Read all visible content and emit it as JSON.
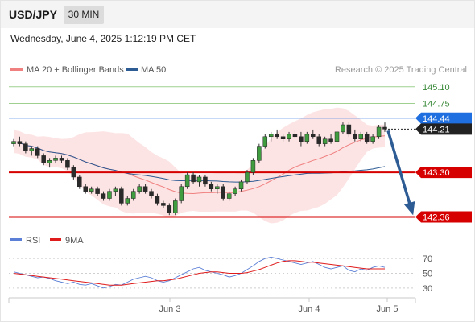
{
  "header": {
    "pair": "USD/JPY",
    "timeframe": "30 MIN"
  },
  "subheader": {
    "datetime": "Wednesday, June 4, 2025 1:12:19 PM CET"
  },
  "legend": {
    "ma20": "MA 20 + Bollinger Bands",
    "ma50": "MA 50",
    "credit": "Research © 2025 Trading Central"
  },
  "colors": {
    "up": "#3a8a3a",
    "down": "#d60000",
    "ma20": "#f08080",
    "ma50": "#2d5b94",
    "band_fill": "#fde4e4",
    "rsi": "#5b7fd6",
    "rsi_ma": "#e01b1b",
    "blue_arrow": "#2d5b94"
  },
  "chart_data": [
    {
      "type": "line",
      "subtype": "candlestick",
      "title": "USD/JPY",
      "price_range": [
        142.2,
        145.3
      ],
      "x_ticks": [
        "Jun 3",
        "Jun 4",
        "Jun 5"
      ],
      "levels": [
        {
          "value": 145.1,
          "label": "145.10",
          "style": "target",
          "color": "#3a8a3a"
        },
        {
          "value": 144.75,
          "label": "144.75",
          "style": "target",
          "color": "#3a8a3a"
        },
        {
          "value": 144.44,
          "label": "144.44",
          "style": "pivot",
          "color": "#1f6fe0"
        },
        {
          "value": 144.21,
          "label": "144.21",
          "style": "last",
          "color": "#222222"
        },
        {
          "value": 143.3,
          "label": "143.30",
          "style": "support",
          "color": "#d60000"
        },
        {
          "value": 142.36,
          "label": "142.36",
          "style": "support",
          "color": "#d60000"
        }
      ],
      "forecast_arrow": {
        "from": 144.21,
        "to": 142.36
      },
      "candles_approx": [
        [
          143.9,
          144.0,
          143.85,
          143.95
        ],
        [
          143.95,
          144.05,
          143.85,
          143.9
        ],
        [
          143.9,
          143.95,
          143.7,
          143.75
        ],
        [
          143.75,
          143.85,
          143.65,
          143.8
        ],
        [
          143.8,
          143.85,
          143.6,
          143.65
        ],
        [
          143.65,
          143.7,
          143.45,
          143.5
        ],
        [
          143.5,
          143.6,
          143.4,
          143.55
        ],
        [
          143.55,
          143.65,
          143.5,
          143.6
        ],
        [
          143.6,
          143.65,
          143.5,
          143.55
        ],
        [
          143.55,
          143.6,
          143.35,
          143.4
        ],
        [
          143.4,
          143.45,
          143.15,
          143.2
        ],
        [
          143.2,
          143.25,
          142.95,
          143.0
        ],
        [
          143.0,
          143.05,
          142.85,
          142.9
        ],
        [
          142.9,
          143.0,
          142.85,
          142.95
        ],
        [
          142.95,
          143.0,
          142.8,
          142.85
        ],
        [
          142.85,
          142.9,
          142.7,
          142.75
        ],
        [
          142.75,
          142.95,
          142.7,
          142.9
        ],
        [
          142.9,
          143.0,
          142.8,
          142.95
        ],
        [
          142.95,
          143.0,
          142.6,
          142.65
        ],
        [
          142.65,
          142.8,
          142.6,
          142.75
        ],
        [
          142.75,
          142.95,
          142.7,
          142.9
        ],
        [
          142.9,
          143.05,
          142.85,
          143.0
        ],
        [
          143.0,
          143.05,
          142.85,
          142.9
        ],
        [
          142.9,
          142.95,
          142.75,
          142.8
        ],
        [
          142.8,
          142.85,
          142.6,
          142.65
        ],
        [
          142.65,
          142.7,
          142.55,
          142.6
        ],
        [
          142.6,
          142.65,
          142.4,
          142.45
        ],
        [
          142.45,
          142.75,
          142.4,
          142.7
        ],
        [
          142.7,
          143.05,
          142.65,
          143.0
        ],
        [
          143.0,
          143.3,
          142.95,
          143.25
        ],
        [
          143.25,
          143.3,
          143.05,
          143.1
        ],
        [
          143.1,
          143.25,
          143.0,
          143.2
        ],
        [
          143.2,
          143.25,
          143.0,
          143.05
        ],
        [
          143.05,
          143.1,
          142.9,
          142.95
        ],
        [
          142.95,
          143.05,
          142.85,
          143.0
        ],
        [
          143.0,
          143.05,
          142.7,
          142.75
        ],
        [
          142.75,
          142.9,
          142.7,
          142.85
        ],
        [
          142.85,
          143.0,
          142.8,
          142.95
        ],
        [
          142.95,
          143.15,
          142.9,
          143.1
        ],
        [
          143.1,
          143.35,
          143.05,
          143.3
        ],
        [
          143.3,
          143.6,
          143.25,
          143.55
        ],
        [
          143.55,
          143.9,
          143.5,
          143.85
        ],
        [
          143.85,
          144.1,
          143.8,
          144.05
        ],
        [
          144.05,
          144.15,
          143.95,
          144.1
        ],
        [
          144.1,
          144.2,
          144.0,
          144.05
        ],
        [
          144.05,
          144.1,
          143.95,
          144.0
        ],
        [
          144.0,
          144.15,
          143.95,
          144.1
        ],
        [
          144.1,
          144.2,
          144.0,
          144.05
        ],
        [
          144.05,
          144.15,
          143.85,
          143.95
        ],
        [
          143.95,
          144.15,
          143.9,
          144.1
        ],
        [
          144.1,
          144.2,
          144.0,
          144.05
        ],
        [
          144.05,
          144.1,
          143.85,
          143.9
        ],
        [
          143.9,
          144.05,
          143.85,
          144.0
        ],
        [
          144.0,
          144.1,
          143.9,
          143.95
        ],
        [
          143.95,
          144.2,
          143.9,
          144.15
        ],
        [
          144.15,
          144.35,
          144.1,
          144.3
        ],
        [
          144.3,
          144.35,
          144.05,
          144.1
        ],
        [
          144.1,
          144.2,
          143.95,
          144.0
        ],
        [
          144.0,
          144.15,
          143.95,
          144.1
        ],
        [
          144.1,
          144.15,
          143.9,
          143.95
        ],
        [
          143.95,
          144.1,
          143.9,
          144.05
        ],
        [
          144.05,
          144.3,
          144.0,
          144.25
        ],
        [
          144.25,
          144.35,
          144.15,
          144.21
        ]
      ]
    },
    {
      "type": "line",
      "title": "RSI",
      "legend": [
        "RSI",
        "9MA"
      ],
      "y_ticks": [
        70,
        50,
        30
      ],
      "ylim": [
        20,
        80
      ],
      "series": [
        {
          "name": "RSI",
          "values": [
            52,
            50,
            48,
            46,
            44,
            45,
            43,
            40,
            38,
            36,
            38,
            35,
            34,
            36,
            33,
            30,
            32,
            35,
            34,
            38,
            42,
            44,
            46,
            44,
            40,
            38,
            40,
            44,
            48,
            52,
            56,
            58,
            54,
            52,
            50,
            48,
            45,
            47,
            50,
            55,
            60,
            66,
            70,
            72,
            70,
            68,
            66,
            64,
            62,
            64,
            66,
            62,
            58,
            56,
            58,
            60,
            54,
            52,
            56,
            54,
            58,
            60,
            58
          ]
        },
        {
          "name": "9MA",
          "values": [
            50,
            49,
            48,
            47,
            46,
            45,
            44,
            43,
            42,
            41,
            40,
            39,
            38,
            37,
            36,
            35,
            34,
            34,
            34,
            35,
            36,
            37,
            38,
            39,
            40,
            40,
            41,
            42,
            44,
            46,
            48,
            50,
            51,
            52,
            52,
            51,
            50,
            50,
            50,
            51,
            53,
            55,
            58,
            61,
            64,
            66,
            67,
            67,
            66,
            65,
            65,
            64,
            63,
            62,
            61,
            60,
            59,
            58,
            57,
            56,
            56,
            56,
            56
          ]
        }
      ]
    }
  ]
}
